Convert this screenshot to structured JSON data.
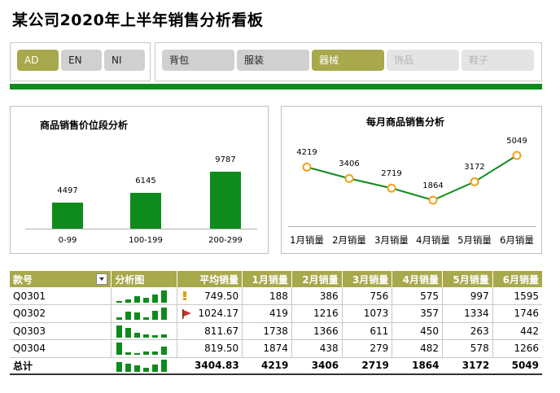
{
  "title": "某公司2020年上半年销售分析看板",
  "region_slicer": [
    {
      "label": "AD",
      "state": "on"
    },
    {
      "label": "EN",
      "state": "off"
    },
    {
      "label": "NI",
      "state": "off"
    }
  ],
  "category_slicer": [
    {
      "label": "背包",
      "state": "off"
    },
    {
      "label": "服装",
      "state": "off"
    },
    {
      "label": "器械",
      "state": "on"
    },
    {
      "label": "饰品",
      "state": "dim"
    },
    {
      "label": "鞋子",
      "state": "dim"
    }
  ],
  "colors": {
    "accent": "#a8a84c",
    "bar": "#0e8b1c",
    "line": "#0e8b1c",
    "marker": "#f0a020"
  },
  "chart_data": [
    {
      "type": "bar",
      "title": "商品销售价位段分析",
      "categories": [
        "0-99",
        "100-199",
        "200-299"
      ],
      "values": [
        4497,
        6145,
        9787
      ],
      "ylim": [
        0,
        10000
      ]
    },
    {
      "type": "line",
      "title": "每月商品销售分析",
      "categories": [
        "1月销量",
        "2月销量",
        "3月销量",
        "4月销量",
        "5月销量",
        "6月销量"
      ],
      "values": [
        4219,
        3406,
        2719,
        1864,
        3172,
        5049
      ]
    }
  ],
  "table": {
    "headers": [
      "款号",
      "分析图",
      "平均销量",
      "1月销量",
      "2月销量",
      "3月销量",
      "4月销量",
      "5月销量",
      "6月销量"
    ],
    "rows": [
      {
        "id": "Q0301",
        "avg": "749.50",
        "icon": "exclamation-icon",
        "months": [
          "188",
          "386",
          "756",
          "575",
          "997",
          "1595"
        ]
      },
      {
        "id": "Q0302",
        "avg": "1024.17",
        "icon": "red-flag-icon",
        "months": [
          "419",
          "1216",
          "1073",
          "357",
          "1334",
          "1746"
        ]
      },
      {
        "id": "Q0303",
        "avg": "811.67",
        "icon": "",
        "months": [
          "1738",
          "1366",
          "611",
          "450",
          "263",
          "442"
        ]
      },
      {
        "id": "Q0304",
        "avg": "819.50",
        "icon": "",
        "months": [
          "1874",
          "438",
          "279",
          "482",
          "578",
          "1266"
        ]
      }
    ],
    "total": {
      "label": "总计",
      "avg": "3404.83",
      "months": [
        "4219",
        "3406",
        "2719",
        "1864",
        "3172",
        "5049"
      ]
    }
  }
}
